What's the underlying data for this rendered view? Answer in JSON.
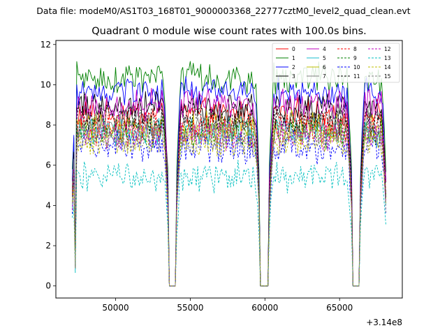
{
  "suptitle": "Data file: modeM0/AS1T03_168T01_9000003368_22777cztM0_level2_quad_clean.evt",
  "chart_data": {
    "type": "line",
    "title": "Quadrant 0 module wise count rates with 100.0s bins.",
    "xlabel": "",
    "ylabel": "",
    "x_offset_label": "+3.14e8",
    "xlim": [
      46000,
      69200
    ],
    "ylim": [
      -0.6,
      12.2
    ],
    "xticks": [
      50000,
      55000,
      60000,
      65000
    ],
    "xtick_labels": [
      "50000",
      "55000",
      "60000",
      "65000"
    ],
    "yticks": [
      0,
      2,
      4,
      6,
      8,
      10,
      12
    ],
    "ytick_labels": [
      "0",
      "2",
      "4",
      "6",
      "8",
      "10",
      "12"
    ],
    "bin_seconds": 100,
    "x_start": 47100,
    "x_end": 68100,
    "observation_windows": [
      [
        47100,
        53500
      ],
      [
        54100,
        59600
      ],
      [
        60300,
        65800
      ],
      [
        66400,
        68100
      ]
    ],
    "dip_times": [
      47300
    ],
    "legend": {
      "position": "top-right",
      "columns": 4
    },
    "series": [
      {
        "name": "0",
        "color": "#ff0000",
        "style": "solid",
        "mean": 8.5
      },
      {
        "name": "1",
        "color": "#008000",
        "style": "solid",
        "mean": 10.3
      },
      {
        "name": "2",
        "color": "#0000ff",
        "style": "solid",
        "mean": 9.6
      },
      {
        "name": "3",
        "color": "#000000",
        "style": "solid",
        "mean": 8.9
      },
      {
        "name": "4",
        "color": "#bf00bf",
        "style": "solid",
        "mean": 9.0
      },
      {
        "name": "5",
        "color": "#17becf",
        "style": "solid",
        "mean": 7.7
      },
      {
        "name": "6",
        "color": "#bfbf00",
        "style": "solid",
        "mean": 7.9
      },
      {
        "name": "7",
        "color": "#7f7f7f",
        "style": "solid",
        "mean": 8.1
      },
      {
        "name": "8",
        "color": "#ff0000",
        "style": "dashed",
        "mean": 7.8
      },
      {
        "name": "9",
        "color": "#008000",
        "style": "dashed",
        "mean": 7.6
      },
      {
        "name": "10",
        "color": "#0000ff",
        "style": "dashed",
        "mean": 6.9
      },
      {
        "name": "11",
        "color": "#000000",
        "style": "dashed",
        "mean": 8.3
      },
      {
        "name": "12",
        "color": "#bf00bf",
        "style": "dashed",
        "mean": 7.5
      },
      {
        "name": "13",
        "color": "#00bfbf",
        "style": "dashed",
        "mean": 5.4
      },
      {
        "name": "14",
        "color": "#bfbf00",
        "style": "dashed",
        "mean": 7.2
      },
      {
        "name": "15",
        "color": "#7f7f7f",
        "style": "dashed",
        "mean": 7.4
      }
    ]
  }
}
